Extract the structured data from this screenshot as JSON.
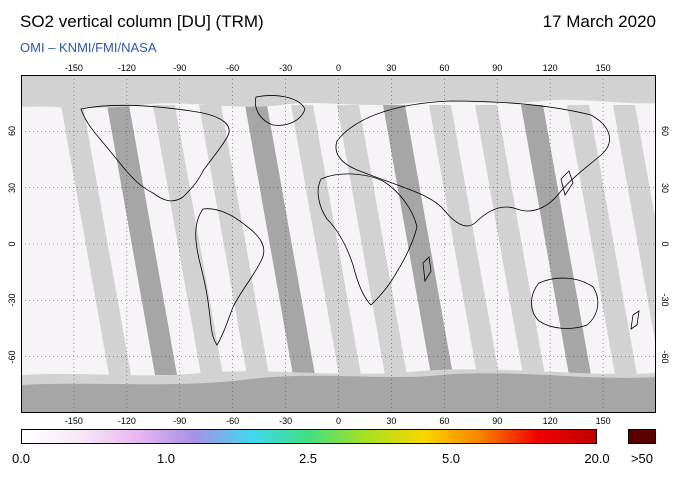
{
  "header": {
    "title": "SO2 vertical column [DU] (TRM)",
    "date": "17 March 2020",
    "credit": "OMI  –  KNMI/FMI/NASA"
  },
  "map": {
    "projection": "equirectangular",
    "top_ticks": [
      "-150",
      "-120",
      "-90",
      "-60",
      "-30",
      "0",
      "30",
      "60",
      "90",
      "120",
      "150"
    ],
    "bottom_ticks": [
      "-150",
      "-120",
      "-90",
      "-60",
      "-30",
      "0",
      "30",
      "60",
      "90",
      "120",
      "150"
    ],
    "left_ticks": [
      "60",
      "30",
      "0",
      "-30",
      "-60"
    ],
    "right_ticks": [
      "60",
      "30",
      "0",
      "-30",
      "-60"
    ],
    "colors": {
      "no_data": "#d2d2d2",
      "no_data_dark": "#a6a6a6",
      "background": "#f7f4f8",
      "coast": "#000000",
      "grid": "#555555"
    }
  },
  "colorbar": {
    "labels": [
      "0.0",
      "1.0",
      "2.5",
      "5.0",
      "20.0"
    ],
    "overflow_label": ">50",
    "overflow_color": "#5a0000",
    "stops": [
      "#ffffff",
      "#f8e8f8",
      "#e8b8f0",
      "#a890e8",
      "#40d8f0",
      "#40e080",
      "#a8e020",
      "#f8d800",
      "#f88000",
      "#f00000",
      "#c00000"
    ]
  }
}
